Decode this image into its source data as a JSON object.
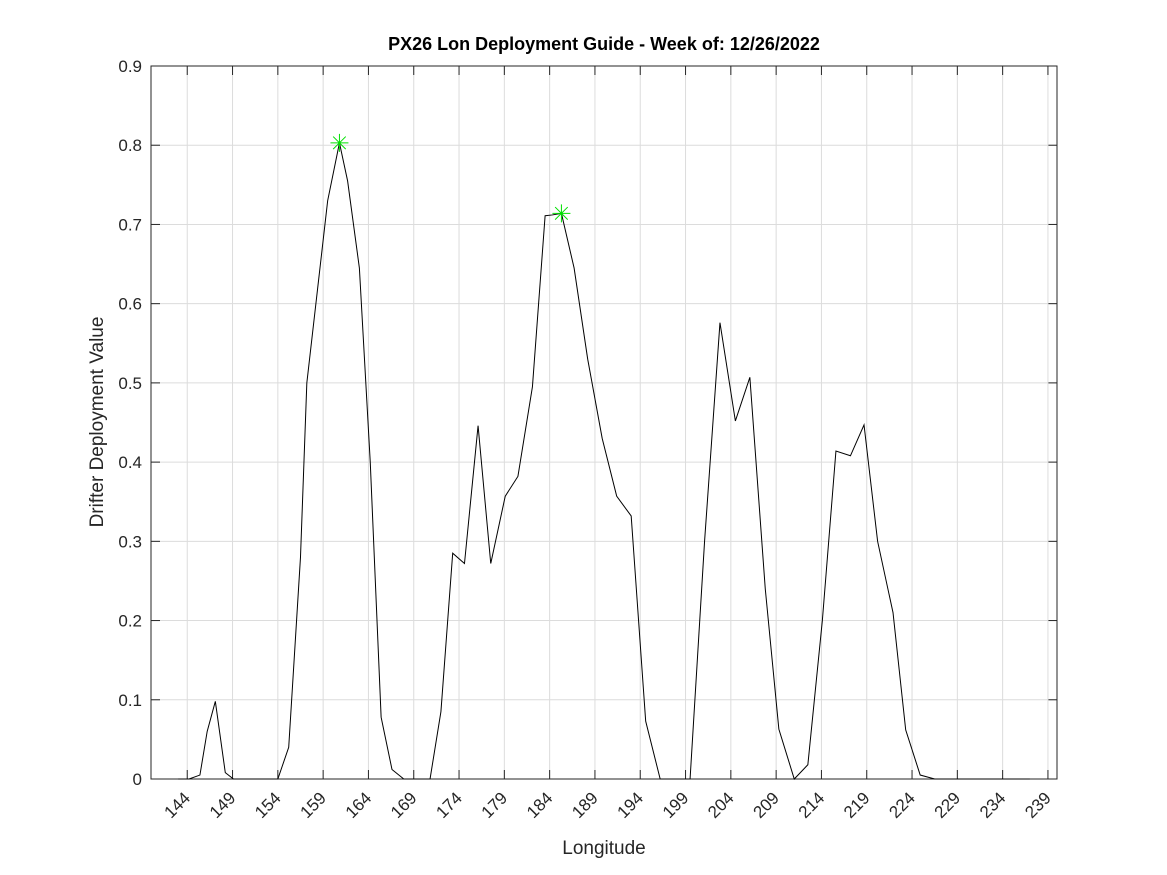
{
  "chart_data": {
    "type": "line",
    "title": "PX26 Lon Deployment Guide - Week of: 12/26/2022",
    "xlabel": "Longitude",
    "ylabel": "Drifter Deployment Value",
    "xlim": [
      140,
      240
    ],
    "ylim": [
      0,
      0.9
    ],
    "xticks": [
      144,
      149,
      154,
      159,
      164,
      169,
      174,
      179,
      184,
      189,
      194,
      199,
      204,
      209,
      214,
      219,
      224,
      229,
      234,
      239
    ],
    "yticks": [
      0,
      0.1,
      0.2,
      0.3,
      0.4,
      0.5,
      0.6,
      0.7,
      0.8,
      0.9
    ],
    "grid": true,
    "series": [
      {
        "color": "#000000",
        "style": "line",
        "x": [
          143.0,
          144.2,
          145.4,
          146.2,
          147.1,
          148.2,
          149.1,
          154.0,
          155.2,
          156.5,
          157.2,
          158.4,
          159.5,
          160.8,
          161.7,
          163.0,
          164.2,
          165.4,
          166.6,
          167.9,
          169.5,
          170.8,
          172.0,
          173.3,
          174.6,
          176.1,
          177.5,
          179.1,
          180.5,
          182.1,
          183.5,
          184.3,
          185.3,
          186.7,
          188.2,
          189.8,
          191.4,
          193.0,
          194.6,
          196.2,
          197.8,
          199.5,
          201.1,
          202.8,
          204.5,
          206.1,
          207.8,
          209.3,
          211.0,
          212.5,
          214.1,
          215.6,
          217.2,
          218.7,
          220.2,
          221.9,
          223.3,
          224.9,
          226.5,
          229.0,
          232.0,
          235.0,
          237.0
        ],
        "values": [
          0,
          0,
          0.005,
          0.06,
          0.098,
          0.008,
          0,
          0,
          0.04,
          0.28,
          0.5,
          0.62,
          0.73,
          0.803,
          0.755,
          0.645,
          0.4,
          0.078,
          0.012,
          0,
          0,
          0,
          0.085,
          0.285,
          0.272,
          0.446,
          0.272,
          0.357,
          0.382,
          0.495,
          0.711,
          0.712,
          0.714,
          0.645,
          0.53,
          0.43,
          0.357,
          0.332,
          0.073,
          0,
          0,
          0,
          0.3,
          0.576,
          0.452,
          0.507,
          0.24,
          0.063,
          0,
          0.018,
          0.2,
          0.414,
          0.408,
          0.447,
          0.3,
          0.21,
          0.062,
          0.005,
          0,
          0,
          0,
          0,
          0
        ]
      },
      {
        "color": "#00e000",
        "style": "star",
        "x": [
          160.8,
          185.3
        ],
        "values": [
          0.803,
          0.714
        ]
      }
    ]
  }
}
